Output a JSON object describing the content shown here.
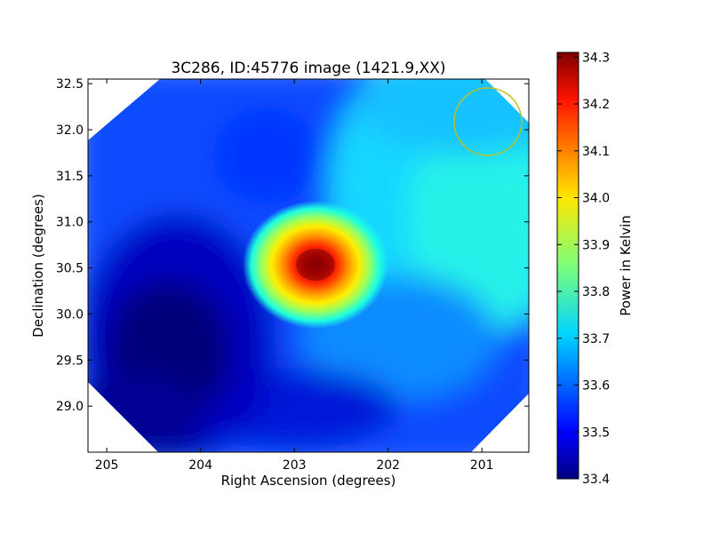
{
  "chart_data": {
    "type": "heatmap",
    "title": "3C286, ID:45776 image (1421.9,XX)",
    "xlabel": "Right Ascension (degrees)",
    "ylabel": "Declination (degrees)",
    "xlim": [
      205.2,
      200.5
    ],
    "ylim": [
      28.5,
      32.55
    ],
    "xticks": [
      205,
      204,
      203,
      202,
      201
    ],
    "yticks": [
      29.0,
      29.5,
      30.0,
      30.5,
      31.0,
      31.5,
      32.0,
      32.5
    ],
    "xtick_labels": [
      "205",
      "204",
      "203",
      "202",
      "201"
    ],
    "ytick_labels": [
      "29.0",
      "29.5",
      "30.0",
      "30.5",
      "31.0",
      "31.5",
      "32.0",
      "32.5"
    ],
    "grid": false,
    "colormap": "jet",
    "colorbar": {
      "label": "Power in Kelvin",
      "range": [
        33.4,
        34.31
      ],
      "ticks": [
        33.4,
        33.5,
        33.6,
        33.7,
        33.8,
        33.9,
        34.0,
        34.1,
        34.2,
        34.3
      ],
      "tick_labels": [
        "33.4",
        "33.5",
        "33.6",
        "33.7",
        "33.8",
        "33.9",
        "34.0",
        "34.1",
        "34.2",
        "34.3"
      ]
    },
    "peak": {
      "ra": 202.75,
      "dec": 30.5,
      "value": 34.3
    },
    "minimum": {
      "ra": 204.3,
      "dec": 29.8,
      "value": 33.4
    },
    "beam_circle": {
      "ra": 200.9,
      "dec": 32.05,
      "radius_deg": 0.36,
      "color": "#bfbf1f"
    }
  }
}
